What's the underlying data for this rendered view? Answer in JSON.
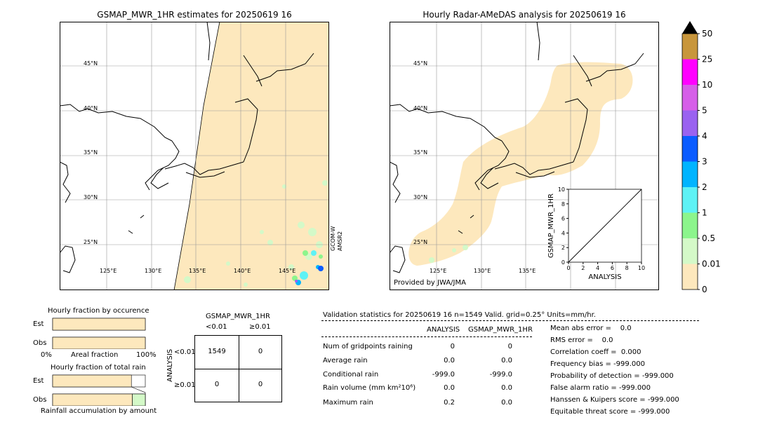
{
  "maps": {
    "left_title": "GSMAP_MWR_1HR estimates for 20250619 16",
    "right_title": "Hourly Radar-AMeDAS analysis for 20250619 16",
    "lat_labels": [
      "45°N",
      "40°N",
      "35°N",
      "30°N",
      "25°N"
    ],
    "left_lon_labels": [
      "125°E",
      "130°E",
      "135°E",
      "140°E",
      "145°E"
    ],
    "right_lon_labels": [
      "125°E",
      "130°E",
      "135°E"
    ],
    "satellite_label_1": "GCOM-W",
    "satellite_label_2": "AMSR2",
    "provider": "Provided by JWA/JMA",
    "colors": {
      "rain_fill": "#fde8bd",
      "coast": "#000000"
    }
  },
  "colorbar": {
    "labels": [
      "50",
      "25",
      "10",
      "5",
      "4",
      "3",
      "2",
      "1",
      "0.5",
      "0.01",
      "0"
    ],
    "colors": [
      "#c8963c",
      "#ff00ff",
      "#d65fe8",
      "#9a62f0",
      "#0b5cff",
      "#00b4ff",
      "#5ef2f5",
      "#8cf58c",
      "#d4f9c8",
      "#fde8bd"
    ],
    "over_color": "#000000"
  },
  "chart_data": [
    {
      "type": "scatter",
      "title": "",
      "xlabel": "ANALYSIS",
      "ylabel": "GSMAP_MWR_1HR",
      "xlim": [
        0,
        10
      ],
      "ylim": [
        0,
        10
      ],
      "x_ticks": [
        "0",
        "2",
        "4",
        "6",
        "8",
        "10"
      ],
      "y_ticks": [
        "0",
        "2",
        "4",
        "6",
        "8",
        "10"
      ],
      "diagonal": true,
      "points": []
    },
    {
      "type": "bar",
      "title": "Hourly fraction by occurence",
      "categories": [
        "Est",
        "Obs"
      ],
      "values": [
        1.0,
        1.0
      ],
      "xlabel": "Areal fraction",
      "x_ticks": [
        "0%",
        "100%"
      ]
    },
    {
      "type": "bar",
      "title": "Hourly fraction of total rain",
      "categories": [
        "Est",
        "Obs"
      ],
      "values": [
        0.85,
        0.86
      ],
      "xlabel": "Rainfall accumulation by amount"
    },
    {
      "type": "table",
      "title": "GSMAP_MWR_1HR",
      "col_headers": [
        "<0.01",
        "≥0.01"
      ],
      "row_label": "ANALYSIS",
      "row_headers": [
        "<0.01",
        "≥0.01"
      ],
      "cells": [
        [
          "1549",
          "0"
        ],
        [
          "0",
          "0"
        ]
      ]
    }
  ],
  "validation": {
    "header": "Validation statistics for 20250619 16  n=1549 Valid. grid=0.25° Units=mm/hr.",
    "col1": "ANALYSIS",
    "col2": "GSMAP_MWR_1HR",
    "rows": [
      {
        "label": "Num of gridpoints raining",
        "a": "0",
        "b": "0"
      },
      {
        "label": "Average rain",
        "a": "0.0",
        "b": "0.0"
      },
      {
        "label": "Conditional rain",
        "a": "-999.0",
        "b": "-999.0"
      },
      {
        "label": "Rain volume (mm km²10⁶)",
        "a": "0.0",
        "b": "0.0"
      },
      {
        "label": "Maximum rain",
        "a": "0.2",
        "b": "0.0"
      }
    ],
    "scores": [
      "Mean abs error =    0.0",
      "RMS error =    0.0",
      "Correlation coeff =  0.000",
      "Frequency bias = -999.000",
      "Probability of detection = -999.000",
      "False alarm ratio = -999.000",
      "Hanssen & Kuipers score = -999.000",
      "Equitable threat score = -999.000"
    ]
  }
}
